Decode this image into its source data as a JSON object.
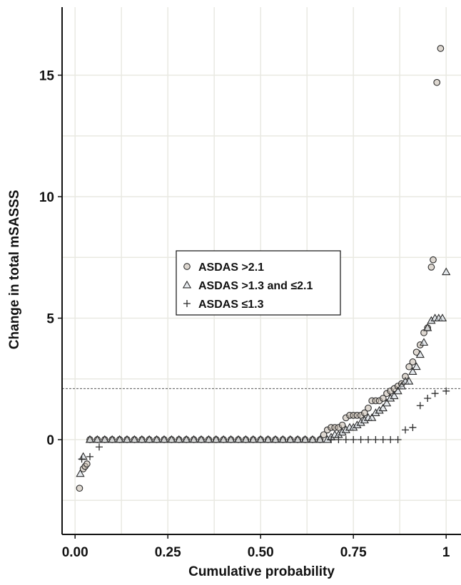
{
  "chart_data": {
    "type": "scatter",
    "xlabel": "Cumulative probability",
    "ylabel": "Change in total mSASSS",
    "xlim": [
      -0.035,
      1.04
    ],
    "ylim": [
      -3.9,
      17.8
    ],
    "x_ticks": [
      0.0,
      0.25,
      0.5,
      0.75,
      1
    ],
    "x_tick_labels": [
      "0.00",
      "0.25",
      "0.50",
      "0.75",
      "1"
    ],
    "y_ticks": [
      0,
      5,
      10,
      15
    ],
    "y_tick_labels": [
      "0",
      "5",
      "10",
      "15"
    ],
    "grid": true,
    "reference_line": {
      "y": 2.1,
      "style": "dashed"
    },
    "legend": {
      "placement": "center-left"
    },
    "series": [
      {
        "name": "ASDAS >2.1",
        "marker": "circle",
        "points": [
          [
            0.012,
            -2.0
          ],
          [
            0.022,
            -1.2
          ],
          [
            0.027,
            -1.1
          ],
          [
            0.032,
            -1.0
          ],
          [
            0.04,
            0
          ],
          [
            0.06,
            0
          ],
          [
            0.08,
            0
          ],
          [
            0.1,
            0
          ],
          [
            0.12,
            0
          ],
          [
            0.14,
            0
          ],
          [
            0.16,
            0
          ],
          [
            0.18,
            0
          ],
          [
            0.2,
            0
          ],
          [
            0.22,
            0
          ],
          [
            0.24,
            0
          ],
          [
            0.26,
            0
          ],
          [
            0.28,
            0
          ],
          [
            0.3,
            0
          ],
          [
            0.32,
            0
          ],
          [
            0.34,
            0
          ],
          [
            0.36,
            0
          ],
          [
            0.38,
            0
          ],
          [
            0.4,
            0
          ],
          [
            0.42,
            0
          ],
          [
            0.44,
            0
          ],
          [
            0.46,
            0
          ],
          [
            0.48,
            0
          ],
          [
            0.5,
            0
          ],
          [
            0.52,
            0
          ],
          [
            0.54,
            0
          ],
          [
            0.56,
            0
          ],
          [
            0.58,
            0
          ],
          [
            0.6,
            0
          ],
          [
            0.62,
            0
          ],
          [
            0.64,
            0
          ],
          [
            0.66,
            0
          ],
          [
            0.67,
            0.2
          ],
          [
            0.68,
            0.4
          ],
          [
            0.69,
            0.5
          ],
          [
            0.7,
            0.5
          ],
          [
            0.71,
            0.5
          ],
          [
            0.72,
            0.6
          ],
          [
            0.73,
            0.9
          ],
          [
            0.74,
            1.0
          ],
          [
            0.75,
            1.0
          ],
          [
            0.76,
            1.0
          ],
          [
            0.77,
            1.0
          ],
          [
            0.78,
            1.1
          ],
          [
            0.79,
            1.3
          ],
          [
            0.8,
            1.6
          ],
          [
            0.81,
            1.6
          ],
          [
            0.82,
            1.6
          ],
          [
            0.83,
            1.7
          ],
          [
            0.84,
            1.9
          ],
          [
            0.85,
            2.0
          ],
          [
            0.86,
            2.1
          ],
          [
            0.87,
            2.2
          ],
          [
            0.88,
            2.3
          ],
          [
            0.89,
            2.6
          ],
          [
            0.9,
            3.0
          ],
          [
            0.91,
            3.2
          ],
          [
            0.92,
            3.6
          ],
          [
            0.93,
            3.9
          ],
          [
            0.94,
            4.4
          ],
          [
            0.95,
            4.6
          ],
          [
            0.96,
            7.1
          ],
          [
            0.965,
            7.4
          ],
          [
            0.975,
            14.7
          ],
          [
            0.985,
            16.1
          ]
        ]
      },
      {
        "name": "ASDAS >1.3 and ≤2.1",
        "marker": "triangle",
        "points": [
          [
            0.014,
            -1.4
          ],
          [
            0.022,
            -0.7
          ],
          [
            0.04,
            0
          ],
          [
            0.06,
            0
          ],
          [
            0.08,
            0
          ],
          [
            0.1,
            0
          ],
          [
            0.12,
            0
          ],
          [
            0.14,
            0
          ],
          [
            0.16,
            0
          ],
          [
            0.18,
            0
          ],
          [
            0.2,
            0
          ],
          [
            0.22,
            0
          ],
          [
            0.24,
            0
          ],
          [
            0.26,
            0
          ],
          [
            0.28,
            0
          ],
          [
            0.3,
            0
          ],
          [
            0.32,
            0
          ],
          [
            0.34,
            0
          ],
          [
            0.36,
            0
          ],
          [
            0.38,
            0
          ],
          [
            0.4,
            0
          ],
          [
            0.42,
            0
          ],
          [
            0.44,
            0
          ],
          [
            0.46,
            0
          ],
          [
            0.48,
            0
          ],
          [
            0.5,
            0
          ],
          [
            0.52,
            0
          ],
          [
            0.54,
            0
          ],
          [
            0.56,
            0
          ],
          [
            0.58,
            0
          ],
          [
            0.6,
            0
          ],
          [
            0.62,
            0
          ],
          [
            0.64,
            0
          ],
          [
            0.66,
            0
          ],
          [
            0.68,
            0
          ],
          [
            0.69,
            0.1
          ],
          [
            0.7,
            0.2
          ],
          [
            0.71,
            0.2
          ],
          [
            0.72,
            0.3
          ],
          [
            0.73,
            0.4
          ],
          [
            0.74,
            0.5
          ],
          [
            0.75,
            0.5
          ],
          [
            0.76,
            0.6
          ],
          [
            0.77,
            0.7
          ],
          [
            0.78,
            0.8
          ],
          [
            0.79,
            0.9
          ],
          [
            0.8,
            0.9
          ],
          [
            0.81,
            1.1
          ],
          [
            0.82,
            1.2
          ],
          [
            0.83,
            1.3
          ],
          [
            0.84,
            1.5
          ],
          [
            0.85,
            1.7
          ],
          [
            0.86,
            1.8
          ],
          [
            0.87,
            2.0
          ],
          [
            0.88,
            2.2
          ],
          [
            0.89,
            2.4
          ],
          [
            0.9,
            2.4
          ],
          [
            0.91,
            2.8
          ],
          [
            0.92,
            3.0
          ],
          [
            0.93,
            3.5
          ],
          [
            0.94,
            4.0
          ],
          [
            0.95,
            4.6
          ],
          [
            0.96,
            4.9
          ],
          [
            0.97,
            5.0
          ],
          [
            0.98,
            5.0
          ],
          [
            0.99,
            5.0
          ],
          [
            1.0,
            6.9
          ]
        ]
      },
      {
        "name": "ASDAS ≤1.3",
        "marker": "plus",
        "points": [
          [
            0.018,
            -0.8
          ],
          [
            0.04,
            -0.7
          ],
          [
            0.065,
            -0.3
          ],
          [
            0.69,
            0
          ],
          [
            0.71,
            0
          ],
          [
            0.73,
            0
          ],
          [
            0.75,
            0
          ],
          [
            0.77,
            0
          ],
          [
            0.79,
            0
          ],
          [
            0.81,
            0
          ],
          [
            0.83,
            0
          ],
          [
            0.85,
            0
          ],
          [
            0.87,
            0
          ],
          [
            0.89,
            0.4
          ],
          [
            0.91,
            0.5
          ],
          [
            0.93,
            1.4
          ],
          [
            0.95,
            1.7
          ],
          [
            0.97,
            1.9
          ],
          [
            1.0,
            2.0
          ]
        ]
      }
    ]
  },
  "colors": {
    "marker_stroke": "#2b2b2b",
    "circle_fill": "#c2b8ac",
    "triangle_fill": "#cbd3dc",
    "grid": "#e9e9e2",
    "axis": "#111111",
    "background": "#ffffff"
  }
}
